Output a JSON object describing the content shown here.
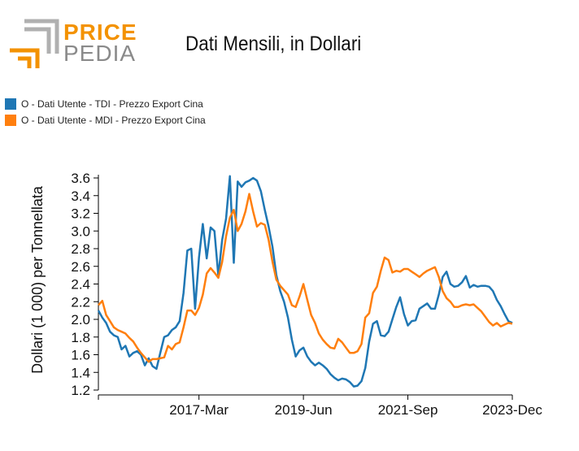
{
  "logo": {
    "word1": "PRICE",
    "word2": "PEDIA",
    "icon": "pricepedia-corner-logo",
    "colors": {
      "orange": "#f39200",
      "gray": "#8a8a8a"
    }
  },
  "chart_data": {
    "type": "line",
    "title": "Dati Mensili, in Dollari",
    "xlabel": "",
    "ylabel": "Dollari (1 000) per Tonnellata",
    "ylim": [
      1.2,
      3.6
    ],
    "yticks": [
      "1.2",
      "1.4",
      "1.6",
      "1.8",
      "2.0",
      "2.2",
      "2.4",
      "2.6",
      "2.8",
      "3.0",
      "3.2",
      "3.4",
      "3.6"
    ],
    "xrange": [
      "2015-01",
      "2023-12"
    ],
    "xticks": [
      {
        "label": "2017-Mar",
        "date": "2017-03"
      },
      {
        "label": "2019-Jun",
        "date": "2019-06"
      },
      {
        "label": "2021-Sep",
        "date": "2021-09"
      },
      {
        "label": "2023-Dec",
        "date": "2023-12"
      }
    ],
    "legend_position": "top-left",
    "series": [
      {
        "name": "O - Dati Utente - TDI - Prezzo Export Cina",
        "color": "#1f77b4",
        "x": [
          "2015-01",
          "2015-02",
          "2015-03",
          "2015-04",
          "2015-05",
          "2015-06",
          "2015-07",
          "2015-08",
          "2015-09",
          "2015-10",
          "2015-11",
          "2015-12",
          "2016-01",
          "2016-02",
          "2016-03",
          "2016-04",
          "2016-05",
          "2016-06",
          "2016-07",
          "2016-08",
          "2016-09",
          "2016-10",
          "2016-11",
          "2016-12",
          "2017-01",
          "2017-02",
          "2017-03",
          "2017-04",
          "2017-05",
          "2017-06",
          "2017-07",
          "2017-08",
          "2017-09",
          "2017-10",
          "2017-11",
          "2017-12",
          "2018-01",
          "2018-02",
          "2018-03",
          "2018-04",
          "2018-05",
          "2018-06",
          "2018-07",
          "2018-08",
          "2018-09",
          "2018-10",
          "2018-11",
          "2018-12",
          "2019-01",
          "2019-02",
          "2019-03",
          "2019-04",
          "2019-05",
          "2019-06",
          "2019-07",
          "2019-08",
          "2019-09",
          "2019-10",
          "2019-11",
          "2019-12",
          "2020-01",
          "2020-02",
          "2020-03",
          "2020-04",
          "2020-05",
          "2020-06",
          "2020-07",
          "2020-08",
          "2020-09",
          "2020-10",
          "2020-11",
          "2020-12",
          "2021-01",
          "2021-02",
          "2021-03",
          "2021-04",
          "2021-05",
          "2021-06",
          "2021-07",
          "2021-08",
          "2021-09",
          "2021-10",
          "2021-11",
          "2021-12",
          "2022-01",
          "2022-02",
          "2022-03",
          "2022-04",
          "2022-05",
          "2022-06",
          "2022-07",
          "2022-08",
          "2022-09",
          "2022-10",
          "2022-11",
          "2022-12",
          "2023-01",
          "2023-02",
          "2023-03",
          "2023-04",
          "2023-05",
          "2023-06",
          "2023-07",
          "2023-08",
          "2023-09",
          "2023-10",
          "2023-11",
          "2023-12"
        ],
        "values": [
          2.1,
          2.02,
          1.96,
          1.86,
          1.82,
          1.8,
          1.66,
          1.7,
          1.58,
          1.62,
          1.64,
          1.6,
          1.48,
          1.56,
          1.47,
          1.44,
          1.62,
          1.8,
          1.82,
          1.88,
          1.91,
          1.98,
          2.3,
          2.78,
          2.8,
          2.12,
          2.7,
          3.08,
          2.69,
          3.04,
          3.0,
          2.49,
          2.9,
          3.14,
          3.62,
          2.64,
          3.56,
          3.5,
          3.55,
          3.57,
          3.6,
          3.57,
          3.45,
          3.24,
          3.05,
          2.82,
          2.5,
          2.32,
          2.2,
          2.02,
          1.77,
          1.58,
          1.65,
          1.68,
          1.58,
          1.52,
          1.48,
          1.51,
          1.48,
          1.44,
          1.38,
          1.34,
          1.31,
          1.33,
          1.32,
          1.29,
          1.24,
          1.25,
          1.3,
          1.45,
          1.75,
          1.95,
          1.98,
          1.82,
          1.81,
          1.86,
          2.0,
          2.14,
          2.25,
          2.06,
          1.93,
          1.98,
          1.99,
          2.12,
          2.15,
          2.18,
          2.12,
          2.12,
          2.28,
          2.48,
          2.54,
          2.4,
          2.37,
          2.38,
          2.42,
          2.49,
          2.36,
          2.39,
          2.37,
          2.38,
          2.38,
          2.37,
          2.32,
          2.22,
          2.15,
          2.06,
          1.98,
          1.96
        ]
      },
      {
        "name": "O - Dati Utente - MDI - Prezzo Export Cina",
        "color": "#ff7f0e",
        "x": [
          "2015-01",
          "2015-02",
          "2015-03",
          "2015-04",
          "2015-05",
          "2015-06",
          "2015-07",
          "2015-08",
          "2015-09",
          "2015-10",
          "2015-11",
          "2015-12",
          "2016-01",
          "2016-02",
          "2016-03",
          "2016-04",
          "2016-05",
          "2016-06",
          "2016-07",
          "2016-08",
          "2016-09",
          "2016-10",
          "2016-11",
          "2016-12",
          "2017-01",
          "2017-02",
          "2017-03",
          "2017-04",
          "2017-05",
          "2017-06",
          "2017-07",
          "2017-08",
          "2017-09",
          "2017-10",
          "2017-11",
          "2017-12",
          "2018-01",
          "2018-02",
          "2018-03",
          "2018-04",
          "2018-05",
          "2018-06",
          "2018-07",
          "2018-08",
          "2018-09",
          "2018-10",
          "2018-11",
          "2018-12",
          "2019-01",
          "2019-02",
          "2019-03",
          "2019-04",
          "2019-05",
          "2019-06",
          "2019-07",
          "2019-08",
          "2019-09",
          "2019-10",
          "2019-11",
          "2019-12",
          "2020-01",
          "2020-02",
          "2020-03",
          "2020-04",
          "2020-05",
          "2020-06",
          "2020-07",
          "2020-08",
          "2020-09",
          "2020-10",
          "2020-11",
          "2020-12",
          "2021-01",
          "2021-02",
          "2021-03",
          "2021-04",
          "2021-05",
          "2021-06",
          "2021-07",
          "2021-08",
          "2021-09",
          "2021-10",
          "2021-11",
          "2021-12",
          "2022-01",
          "2022-02",
          "2022-03",
          "2022-04",
          "2022-05",
          "2022-06",
          "2022-07",
          "2022-08",
          "2022-09",
          "2022-10",
          "2022-11",
          "2022-12",
          "2023-01",
          "2023-02",
          "2023-03",
          "2023-04",
          "2023-05",
          "2023-06",
          "2023-07",
          "2023-08",
          "2023-09",
          "2023-10",
          "2023-11",
          "2023-12"
        ],
        "values": [
          2.16,
          2.21,
          2.05,
          1.98,
          1.91,
          1.88,
          1.86,
          1.84,
          1.79,
          1.75,
          1.68,
          1.62,
          1.57,
          1.52,
          1.55,
          1.55,
          1.56,
          1.57,
          1.7,
          1.66,
          1.72,
          1.74,
          1.91,
          2.1,
          2.1,
          2.05,
          2.13,
          2.28,
          2.52,
          2.58,
          2.53,
          2.47,
          2.65,
          2.94,
          3.15,
          3.24,
          3.0,
          3.08,
          3.22,
          3.42,
          3.22,
          3.05,
          3.09,
          3.07,
          2.9,
          2.65,
          2.45,
          2.38,
          2.33,
          2.28,
          2.16,
          2.14,
          2.26,
          2.4,
          2.22,
          2.05,
          1.96,
          1.84,
          1.77,
          1.72,
          1.68,
          1.67,
          1.78,
          1.74,
          1.68,
          1.62,
          1.62,
          1.64,
          1.72,
          2.02,
          2.07,
          2.3,
          2.37,
          2.55,
          2.7,
          2.67,
          2.53,
          2.55,
          2.54,
          2.57,
          2.57,
          2.54,
          2.51,
          2.48,
          2.52,
          2.55,
          2.57,
          2.59,
          2.48,
          2.32,
          2.24,
          2.2,
          2.14,
          2.14,
          2.16,
          2.17,
          2.16,
          2.17,
          2.13,
          2.09,
          2.03,
          1.97,
          1.93,
          1.96,
          1.92,
          1.94,
          1.96,
          1.95
        ]
      }
    ]
  }
}
